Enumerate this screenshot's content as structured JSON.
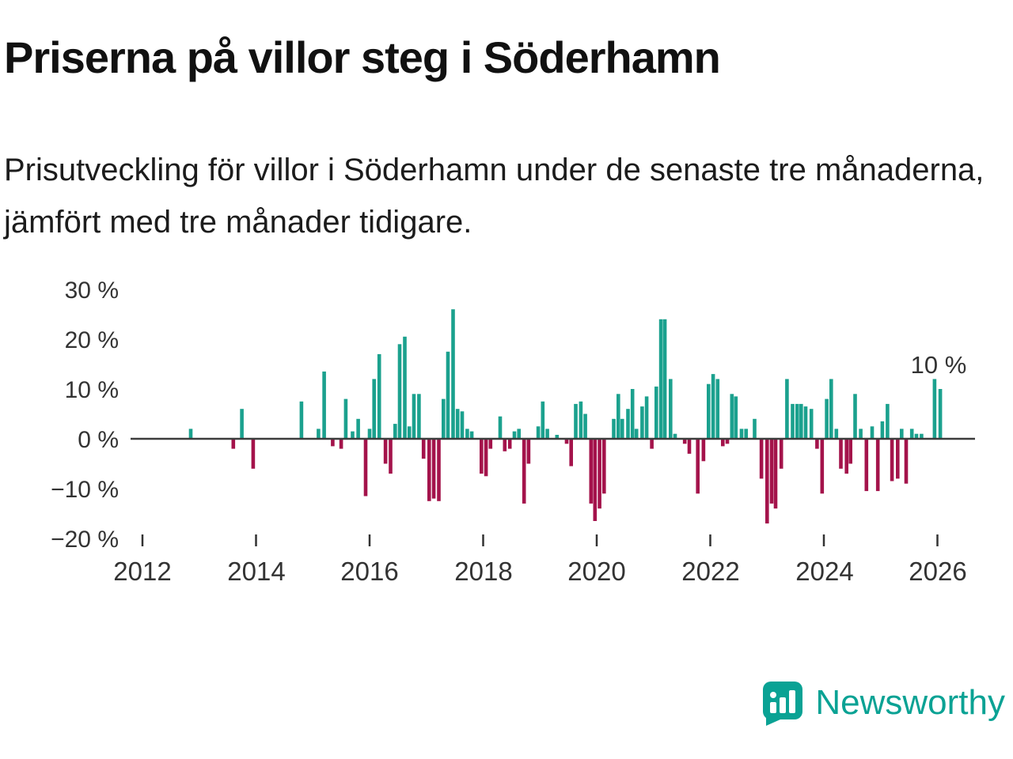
{
  "header": {
    "title": "Priserna på villor steg i Söderhamn",
    "subtitle": "Prisutveckling för villor i Söderhamn under de senaste tre månaderna, jämfört med tre månader tidigare."
  },
  "chart": {
    "y_ticks": [
      "30 %",
      "20 %",
      "10 %",
      "0 %",
      "−10 %",
      "−20 %"
    ],
    "x_ticks": [
      "2012",
      "2014",
      "2016",
      "2018",
      "2020",
      "2022",
      "2024",
      "2026"
    ],
    "annotation": "10 %"
  },
  "chart_data": {
    "type": "bar",
    "title": "Priserna på villor steg i Söderhamn",
    "subtitle": "Prisutveckling för villor i Söderhamn under de senaste tre månaderna, jämfört med tre månader tidigare.",
    "xlabel": "",
    "ylabel": "",
    "unit": "%",
    "ylim": [
      -20,
      30
    ],
    "xlim": [
      2011.8,
      2026.7
    ],
    "x_tick_years": [
      2012,
      2014,
      2016,
      2018,
      2020,
      2022,
      2024,
      2026
    ],
    "y_tick_values": [
      30,
      20,
      10,
      0,
      -10,
      -20
    ],
    "annotation": {
      "x": 2026.05,
      "label": "10 %",
      "value": 10
    },
    "grid": false,
    "legend": "none",
    "colors": {
      "positive": "#1ba18e",
      "negative": "#a4134b",
      "axis": "#3c3c3c"
    },
    "points": [
      [
        2012.85,
        2
      ],
      [
        2013.6,
        -2
      ],
      [
        2013.75,
        6
      ],
      [
        2013.95,
        -6
      ],
      [
        2014.8,
        7.5
      ],
      [
        2015.1,
        2
      ],
      [
        2015.2,
        13.5
      ],
      [
        2015.35,
        -1.5
      ],
      [
        2015.5,
        -2
      ],
      [
        2015.58,
        8
      ],
      [
        2015.7,
        1.5
      ],
      [
        2015.8,
        4
      ],
      [
        2015.93,
        -11.5
      ],
      [
        2016.0,
        2
      ],
      [
        2016.08,
        12
      ],
      [
        2016.17,
        17
      ],
      [
        2016.28,
        -5
      ],
      [
        2016.37,
        -7
      ],
      [
        2016.45,
        3
      ],
      [
        2016.53,
        19
      ],
      [
        2016.62,
        20.5
      ],
      [
        2016.7,
        2.5
      ],
      [
        2016.78,
        9
      ],
      [
        2016.87,
        9
      ],
      [
        2016.95,
        -4
      ],
      [
        2017.05,
        -12.5
      ],
      [
        2017.13,
        -12
      ],
      [
        2017.22,
        -12.5
      ],
      [
        2017.3,
        8
      ],
      [
        2017.38,
        17.5
      ],
      [
        2017.47,
        26
      ],
      [
        2017.55,
        6
      ],
      [
        2017.63,
        5.5
      ],
      [
        2017.72,
        2
      ],
      [
        2017.8,
        1.5
      ],
      [
        2017.97,
        -7
      ],
      [
        2018.05,
        -7.5
      ],
      [
        2018.13,
        -2
      ],
      [
        2018.3,
        4.5
      ],
      [
        2018.38,
        -2.5
      ],
      [
        2018.47,
        -2
      ],
      [
        2018.55,
        1.5
      ],
      [
        2018.63,
        2
      ],
      [
        2018.72,
        -13
      ],
      [
        2018.8,
        -5
      ],
      [
        2018.97,
        2.5
      ],
      [
        2019.05,
        7.5
      ],
      [
        2019.13,
        2
      ],
      [
        2019.3,
        0.8
      ],
      [
        2019.47,
        -1
      ],
      [
        2019.55,
        -5.5
      ],
      [
        2019.63,
        7
      ],
      [
        2019.72,
        7.5
      ],
      [
        2019.8,
        5
      ],
      [
        2019.9,
        -13
      ],
      [
        2019.97,
        -16.5
      ],
      [
        2020.05,
        -14
      ],
      [
        2020.13,
        -11
      ],
      [
        2020.3,
        4
      ],
      [
        2020.38,
        9
      ],
      [
        2020.45,
        4
      ],
      [
        2020.55,
        6
      ],
      [
        2020.63,
        10
      ],
      [
        2020.7,
        2
      ],
      [
        2020.8,
        6.5
      ],
      [
        2020.88,
        8.5
      ],
      [
        2020.97,
        -2
      ],
      [
        2021.05,
        10.5
      ],
      [
        2021.13,
        24
      ],
      [
        2021.2,
        24
      ],
      [
        2021.3,
        12
      ],
      [
        2021.38,
        1
      ],
      [
        2021.55,
        -1
      ],
      [
        2021.63,
        -3
      ],
      [
        2021.78,
        -11
      ],
      [
        2021.88,
        -4.5
      ],
      [
        2021.97,
        11
      ],
      [
        2022.05,
        13
      ],
      [
        2022.13,
        12
      ],
      [
        2022.22,
        -1.5
      ],
      [
        2022.3,
        -1
      ],
      [
        2022.38,
        9
      ],
      [
        2022.45,
        8.5
      ],
      [
        2022.55,
        2
      ],
      [
        2022.63,
        2
      ],
      [
        2022.78,
        4
      ],
      [
        2022.9,
        -8
      ],
      [
        2023.0,
        -17
      ],
      [
        2023.08,
        -13
      ],
      [
        2023.15,
        -14
      ],
      [
        2023.25,
        -6
      ],
      [
        2023.35,
        12
      ],
      [
        2023.45,
        7
      ],
      [
        2023.53,
        7
      ],
      [
        2023.6,
        7
      ],
      [
        2023.68,
        6.5
      ],
      [
        2023.78,
        6
      ],
      [
        2023.88,
        -2
      ],
      [
        2023.97,
        -11
      ],
      [
        2024.05,
        8
      ],
      [
        2024.13,
        12
      ],
      [
        2024.22,
        2
      ],
      [
        2024.3,
        -6
      ],
      [
        2024.4,
        -7
      ],
      [
        2024.47,
        -5
      ],
      [
        2024.55,
        9
      ],
      [
        2024.65,
        2
      ],
      [
        2024.75,
        -10.5
      ],
      [
        2024.85,
        2.5
      ],
      [
        2024.95,
        -10.5
      ],
      [
        2025.03,
        3.5
      ],
      [
        2025.12,
        7
      ],
      [
        2025.2,
        -8.5
      ],
      [
        2025.3,
        -8
      ],
      [
        2025.37,
        2
      ],
      [
        2025.45,
        -9
      ],
      [
        2025.55,
        2
      ],
      [
        2025.63,
        1
      ],
      [
        2025.72,
        1
      ],
      [
        2025.95,
        12
      ],
      [
        2026.05,
        10
      ]
    ]
  },
  "footer": {
    "brand": "Newsworthy"
  }
}
